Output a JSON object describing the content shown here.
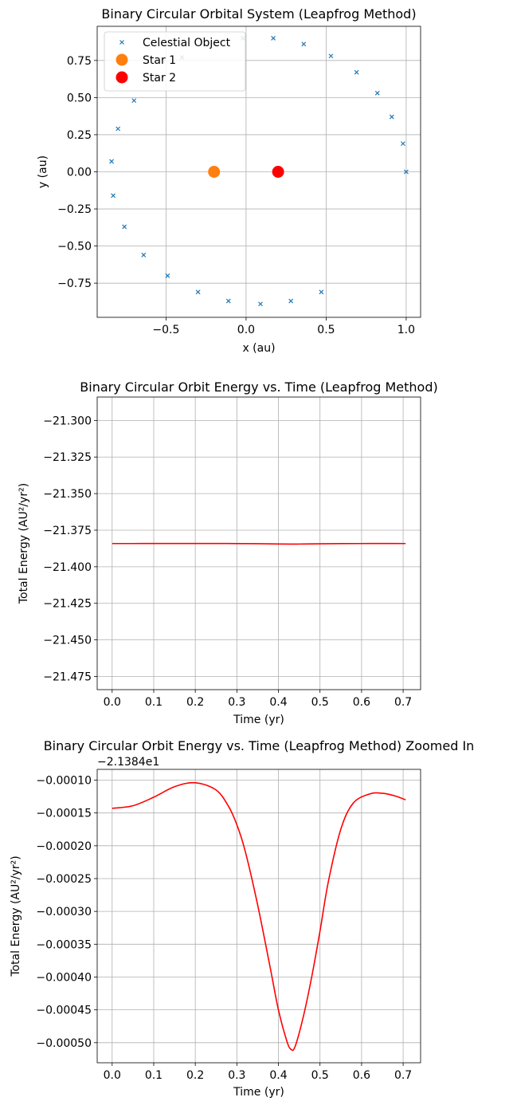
{
  "chart_data": [
    {
      "type": "scatter",
      "title": "Binary Circular Orbital System (Leapfrog Method)",
      "xlabel": "x (au)",
      "ylabel": "y (au)",
      "xlim": [
        -0.93,
        1.09
      ],
      "ylim": [
        -0.98,
        0.98
      ],
      "xticks": [
        -0.5,
        0.0,
        0.5,
        1.0
      ],
      "xticklabels": [
        "−0.5",
        "0.0",
        "0.5",
        "1.0"
      ],
      "yticks": [
        -0.75,
        -0.5,
        -0.25,
        0.0,
        0.25,
        0.5,
        0.75
      ],
      "yticklabels": [
        "−0.75",
        "−0.50",
        "−0.25",
        "0.00",
        "0.25",
        "0.50",
        "0.75"
      ],
      "grid": true,
      "legend": "top-left",
      "series": [
        {
          "name": "Celestial Object",
          "marker": "x",
          "color": "#1f77b4",
          "points": [
            [
              1.0,
              0.0
            ],
            [
              0.98,
              0.19
            ],
            [
              0.91,
              0.37
            ],
            [
              0.82,
              0.53
            ],
            [
              0.69,
              0.67
            ],
            [
              0.53,
              0.78
            ],
            [
              0.36,
              0.86
            ],
            [
              0.17,
              0.9
            ],
            [
              -0.02,
              0.9
            ],
            [
              -0.21,
              0.86
            ],
            [
              -0.4,
              0.77
            ],
            [
              -0.56,
              0.64
            ],
            [
              -0.7,
              0.48
            ],
            [
              -0.8,
              0.29
            ],
            [
              -0.84,
              0.07
            ],
            [
              -0.83,
              -0.16
            ],
            [
              -0.76,
              -0.37
            ],
            [
              -0.64,
              -0.56
            ],
            [
              -0.49,
              -0.7
            ],
            [
              -0.3,
              -0.81
            ],
            [
              -0.11,
              -0.87
            ],
            [
              0.09,
              -0.89
            ],
            [
              0.28,
              -0.87
            ],
            [
              0.47,
              -0.81
            ]
          ]
        },
        {
          "name": "Star 1",
          "marker": "o",
          "color": "#ff7f0e",
          "points": [
            [
              -0.2,
              0.0
            ]
          ]
        },
        {
          "name": "Star 2",
          "marker": "o",
          "color": "#ff0000",
          "points": [
            [
              0.2,
              0.0
            ]
          ]
        }
      ]
    },
    {
      "type": "line",
      "title": "Binary Circular Orbit Energy vs. Time (Leapfrog Method)",
      "xlabel": "Time (yr)",
      "ylabel": "Total Energy (AU²/yr²)",
      "xlim": [
        -0.036,
        0.742
      ],
      "ylim": [
        -21.484,
        -21.284
      ],
      "xticks": [
        0.0,
        0.1,
        0.2,
        0.3,
        0.4,
        0.5,
        0.6,
        0.7
      ],
      "xticklabels": [
        "0.0",
        "0.1",
        "0.2",
        "0.3",
        "0.4",
        "0.5",
        "0.6",
        "0.7"
      ],
      "yticks": [
        -21.3,
        -21.325,
        -21.35,
        -21.375,
        -21.4,
        -21.425,
        -21.45,
        -21.475
      ],
      "yticklabels": [
        "−21.300",
        "−21.325",
        "−21.350",
        "−21.375",
        "−21.400",
        "−21.425",
        "−21.450",
        "−21.475"
      ],
      "grid": true,
      "series": [
        {
          "color": "#ff0000",
          "x": [
            0.0,
            0.05,
            0.1,
            0.15,
            0.2,
            0.25,
            0.3,
            0.35,
            0.4,
            0.43,
            0.45,
            0.5,
            0.55,
            0.6,
            0.65,
            0.706
          ],
          "y": [
            -21.38414,
            -21.38413,
            -21.38411,
            -21.3841,
            -21.3841,
            -21.38411,
            -21.38415,
            -21.38425,
            -21.38444,
            -21.38451,
            -21.38448,
            -21.38432,
            -21.38418,
            -21.38413,
            -21.38412,
            -21.38413
          ]
        }
      ]
    },
    {
      "type": "line",
      "title": "Binary Circular Orbit Energy vs. Time (Leapfrog Method) Zoomed In",
      "xlabel": "Time (yr)",
      "ylabel": "Total Energy (AU²/yr²)",
      "offset_text": "−2.1384e1",
      "xlim": [
        -0.036,
        0.742
      ],
      "ylim": [
        -0.0005306,
        -8.36e-05
      ],
      "xticks": [
        0.0,
        0.1,
        0.2,
        0.3,
        0.4,
        0.5,
        0.6,
        0.7
      ],
      "xticklabels": [
        "0.0",
        "0.1",
        "0.2",
        "0.3",
        "0.4",
        "0.5",
        "0.6",
        "0.7"
      ],
      "yticks": [
        -0.0001,
        -0.00015,
        -0.0002,
        -0.00025,
        -0.0003,
        -0.00035,
        -0.0004,
        -0.00045,
        -0.0005
      ],
      "yticklabels": [
        "−0.00010",
        "−0.00015",
        "−0.00020",
        "−0.00025",
        "−0.00030",
        "−0.00035",
        "−0.00040",
        "−0.00045",
        "−0.00050"
      ],
      "grid": true,
      "series": [
        {
          "color": "#ff0000",
          "x": [
            0.0,
            0.05,
            0.1,
            0.15,
            0.2,
            0.25,
            0.28,
            0.3,
            0.32,
            0.35,
            0.38,
            0.4,
            0.42,
            0.43,
            0.44,
            0.46,
            0.48,
            0.5,
            0.52,
            0.55,
            0.58,
            0.62,
            0.65,
            0.68,
            0.706
          ],
          "y": [
            -0.000143,
            -0.000139,
            -0.000126,
            -0.00011,
            -0.000104,
            -0.000115,
            -0.00014,
            -0.000168,
            -0.000208,
            -0.00029,
            -0.000385,
            -0.00045,
            -0.000497,
            -0.00051,
            -0.000506,
            -0.00046,
            -0.0004,
            -0.00033,
            -0.000255,
            -0.000175,
            -0.000135,
            -0.000121,
            -0.00012,
            -0.000124,
            -0.00013
          ]
        }
      ]
    }
  ]
}
